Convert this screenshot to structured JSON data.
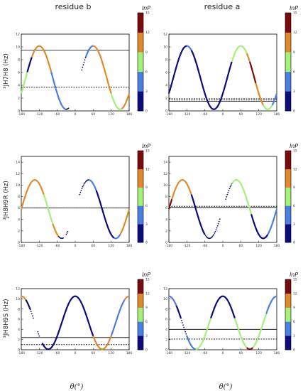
{
  "column_titles": [
    "residue b",
    "residue a"
  ],
  "row_ylabels": [
    "³JH7H8 (Hz)",
    "³JH8H9R (Hz)",
    "³JH8H9S (Hz)"
  ],
  "x_axis_label": "θ(°)",
  "colorbar": {
    "title": "lnP",
    "ticks": [
      "0",
      "3",
      "6",
      "9",
      "12",
      "15"
    ],
    "colors": [
      "#0c0c7a",
      "#4a7fe0",
      "#a3f07c",
      "#e08a2a",
      "#7a0c0c"
    ]
  },
  "chart_data": [
    {
      "type": "line",
      "id": "row1-residue-b",
      "xlim": [
        -180,
        180
      ],
      "ylim": [
        0,
        12
      ],
      "xticks": [
        "-180",
        "-120",
        "-60",
        "0",
        "60",
        "120",
        "180"
      ],
      "yticks": [
        "0",
        "2",
        "4",
        "6",
        "8",
        "10",
        "12"
      ],
      "curve": {
        "A": 5.2,
        "B": 4.95,
        "phase": 60
      },
      "segments": [
        {
          "from": -180,
          "to": -160,
          "lnP": 7.5,
          "style": "line"
        },
        {
          "from": -160,
          "to": -145,
          "lnP": 1,
          "style": "line"
        },
        {
          "from": -145,
          "to": -122,
          "lnP": 10.5,
          "style": "line"
        },
        {
          "from": -122,
          "to": -80,
          "lnP": 10.5,
          "style": "line"
        },
        {
          "from": -80,
          "to": -30,
          "lnP": 4.5,
          "style": "line"
        },
        {
          "from": -30,
          "to": -22,
          "lnP": 1,
          "style": "dots"
        },
        {
          "from": 22,
          "to": 35,
          "lnP": 1,
          "style": "dots"
        },
        {
          "from": 35,
          "to": 60,
          "lnP": 4.5,
          "style": "line"
        },
        {
          "from": 60,
          "to": 120,
          "lnP": 10.5,
          "style": "line"
        },
        {
          "from": 120,
          "to": 155,
          "lnP": 7.5,
          "style": "line"
        },
        {
          "from": 155,
          "to": 180,
          "lnP": 10.5,
          "style": "line"
        }
      ],
      "hline_solid": 9.5,
      "hline_dashed": 3.7
    },
    {
      "type": "line",
      "id": "row1-residue-a",
      "xlim": [
        -180,
        180
      ],
      "ylim": [
        0,
        12
      ],
      "xticks": [
        "-180",
        "-120",
        "-60",
        "0",
        "60",
        "120",
        "180"
      ],
      "yticks": [
        "0",
        "2",
        "4",
        "6",
        "8",
        "10",
        "12"
      ],
      "curve": {
        "A": 5.2,
        "B": 4.95,
        "phase": 60
      },
      "segments": [
        {
          "from": -180,
          "to": -120,
          "lnP": 1,
          "style": "line"
        },
        {
          "from": -120,
          "to": -105,
          "lnP": 4.5,
          "style": "line"
        },
        {
          "from": -105,
          "to": 30,
          "lnP": 1,
          "style": "line"
        },
        {
          "from": 30,
          "to": 80,
          "lnP": 7.5,
          "style": "line"
        },
        {
          "from": 80,
          "to": 90,
          "lnP": 10.5,
          "style": "line"
        },
        {
          "from": 90,
          "to": 110,
          "lnP": 13.5,
          "style": "line"
        },
        {
          "from": 110,
          "to": 135,
          "lnP": 10.5,
          "style": "line"
        },
        {
          "from": 135,
          "to": 165,
          "lnP": 7.5,
          "style": "line"
        },
        {
          "from": 165,
          "to": 180,
          "lnP": 4.5,
          "style": "line"
        }
      ],
      "hline_solid": 1.5,
      "hline_dashed": 1.9,
      "hline_dashed2": 1.7
    },
    {
      "type": "line",
      "id": "row2-residue-b",
      "xlim": [
        -180,
        180
      ],
      "ylim": [
        0,
        15
      ],
      "xticks": [
        "-180",
        "-120",
        "-60",
        "0",
        "60",
        "120",
        "180"
      ],
      "yticks": [
        "0",
        "2",
        "4",
        "6",
        "8",
        "10",
        "12",
        "14"
      ],
      "curve": {
        "A": 5.8,
        "B": 5.1,
        "phase": -135
      },
      "segments": [
        {
          "from": -180,
          "to": -170,
          "lnP": 10.5,
          "style": "line"
        },
        {
          "from": -170,
          "to": -125,
          "lnP": 10.5,
          "style": "line"
        },
        {
          "from": -125,
          "to": -105,
          "lnP": 10.5,
          "style": "line"
        },
        {
          "from": -105,
          "to": -75,
          "lnP": 7.5,
          "style": "line"
        },
        {
          "from": -75,
          "to": -55,
          "lnP": 10.5,
          "style": "line"
        },
        {
          "from": -55,
          "to": -40,
          "lnP": 1,
          "style": "dots"
        },
        {
          "from": -30,
          "to": -25,
          "lnP": 1,
          "style": "dots"
        },
        {
          "from": 15,
          "to": 45,
          "lnP": 1,
          "style": "dots"
        },
        {
          "from": 45,
          "to": 70,
          "lnP": 4.5,
          "style": "line"
        },
        {
          "from": 70,
          "to": 100,
          "lnP": 1,
          "style": "line"
        },
        {
          "from": 100,
          "to": 130,
          "lnP": 1,
          "style": "line"
        },
        {
          "from": 130,
          "to": 150,
          "lnP": 4.5,
          "style": "line"
        },
        {
          "from": 150,
          "to": 180,
          "lnP": 10.5,
          "style": "line"
        }
      ],
      "hline_solid": 6.0,
      "hline_dashed": 6.0
    },
    {
      "type": "line",
      "id": "row2-residue-a",
      "xlim": [
        -180,
        180
      ],
      "ylim": [
        0,
        15
      ],
      "xticks": [
        "-180",
        "-120",
        "-60",
        "0",
        "60",
        "120",
        "180"
      ],
      "yticks": [
        "0",
        "2",
        "4",
        "6",
        "8",
        "10",
        "12",
        "14"
      ],
      "curve": {
        "A": 5.8,
        "B": 5.1,
        "phase": -135
      },
      "segments": [
        {
          "from": -180,
          "to": -170,
          "lnP": 13.5,
          "style": "line"
        },
        {
          "from": -170,
          "to": -105,
          "lnP": 10.5,
          "style": "line"
        },
        {
          "from": -105,
          "to": -60,
          "lnP": 1,
          "style": "line"
        },
        {
          "from": -60,
          "to": -10,
          "lnP": 1,
          "style": "dots"
        },
        {
          "from": 10,
          "to": 30,
          "lnP": 1,
          "style": "dots"
        },
        {
          "from": 30,
          "to": 95,
          "lnP": 7.5,
          "style": "line"
        },
        {
          "from": 95,
          "to": 150,
          "lnP": 1,
          "style": "line"
        },
        {
          "from": 150,
          "to": 180,
          "lnP": 4.5,
          "style": "line"
        }
      ],
      "hline_solid": 6.1,
      "hline_dashed": 6.3
    },
    {
      "type": "line",
      "id": "row3-residue-b",
      "xlim": [
        -180,
        180
      ],
      "ylim": [
        0,
        12
      ],
      "xticks": [
        "-180",
        "-120",
        "-60",
        "0",
        "60",
        "120",
        "180"
      ],
      "yticks": [
        "0",
        "2",
        "4",
        "6",
        "8",
        "10",
        "12"
      ],
      "curve": {
        "A": 5.3,
        "B": 5.2,
        "phase": 0
      },
      "segments": [
        {
          "from": -180,
          "to": -165,
          "lnP": 10.5,
          "style": "line"
        },
        {
          "from": -165,
          "to": -150,
          "lnP": 1,
          "style": "line"
        },
        {
          "from": -150,
          "to": -140,
          "lnP": 1,
          "style": "dots"
        },
        {
          "from": -125,
          "to": -120,
          "lnP": 1,
          "style": "dots"
        },
        {
          "from": -110,
          "to": -60,
          "lnP": 1,
          "style": "line"
        },
        {
          "from": -60,
          "to": 60,
          "lnP": 1,
          "style": "line"
        },
        {
          "from": 60,
          "to": 120,
          "lnP": 10.5,
          "style": "line"
        },
        {
          "from": 120,
          "to": 165,
          "lnP": 4.5,
          "style": "line"
        },
        {
          "from": 165,
          "to": 180,
          "lnP": 10.5,
          "style": "line"
        }
      ],
      "hline_solid": 2.4,
      "hline_dashed": 1.0
    },
    {
      "type": "line",
      "id": "row3-residue-a",
      "xlim": [
        -180,
        180
      ],
      "ylim": [
        0,
        12
      ],
      "xticks": [
        "-180",
        "-120",
        "-60",
        "0",
        "60",
        "120",
        "180"
      ],
      "yticks": [
        "0",
        "2",
        "4",
        "6",
        "8",
        "10",
        "12"
      ],
      "curve": {
        "A": 5.3,
        "B": 5.2,
        "phase": 0
      },
      "segments": [
        {
          "from": -180,
          "to": -155,
          "lnP": 4.5,
          "style": "line"
        },
        {
          "from": -155,
          "to": -140,
          "lnP": 1,
          "style": "line"
        },
        {
          "from": -140,
          "to": -120,
          "lnP": 1,
          "style": "dots"
        },
        {
          "from": -120,
          "to": -90,
          "lnP": 4.5,
          "style": "line"
        },
        {
          "from": -90,
          "to": -40,
          "lnP": 7.5,
          "style": "line"
        },
        {
          "from": -40,
          "to": 40,
          "lnP": 1,
          "style": "line"
        },
        {
          "from": 40,
          "to": 80,
          "lnP": 7.5,
          "style": "line"
        },
        {
          "from": 80,
          "to": 100,
          "lnP": 13.5,
          "style": "line"
        },
        {
          "from": 100,
          "to": 145,
          "lnP": 7.5,
          "style": "line"
        },
        {
          "from": 145,
          "to": 180,
          "lnP": 4.5,
          "style": "line"
        }
      ],
      "hline_solid": 4.0,
      "hline_dashed": 2.1
    }
  ]
}
